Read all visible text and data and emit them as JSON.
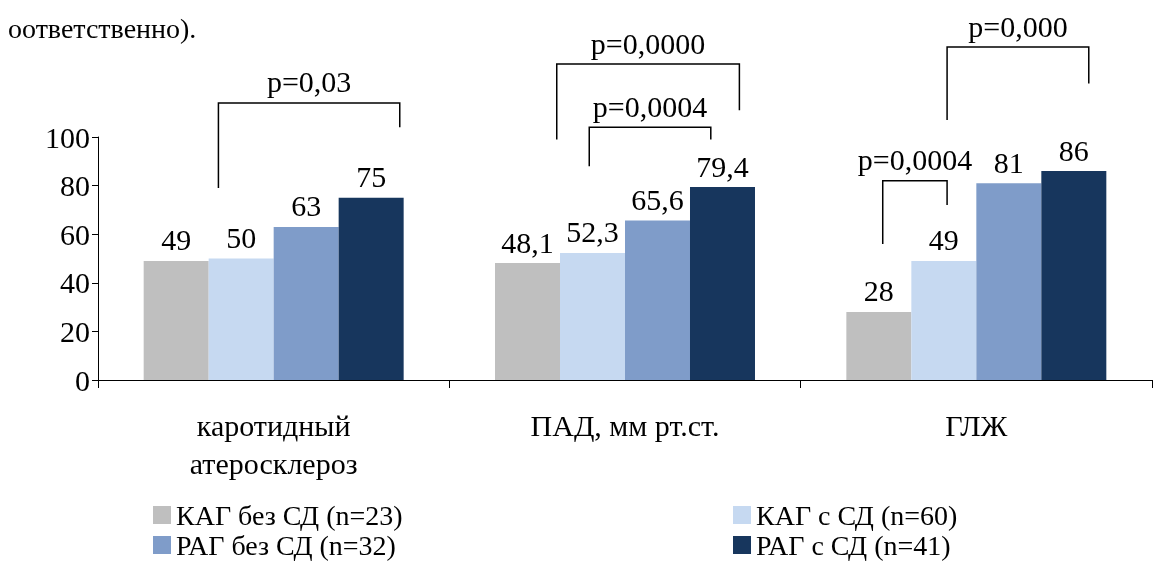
{
  "chart_data": {
    "type": "bar",
    "categories": [
      "каротидный атеросклероз",
      "ПАД, мм рт.ст.",
      "ГЛЖ"
    ],
    "series": [
      {
        "name": "КАГ без СД (n=23)",
        "color": "#bfbfbf",
        "values": [
          49,
          48.1,
          28
        ],
        "value_labels": [
          "49",
          "48,1",
          "28"
        ]
      },
      {
        "name": "КАГ с СД (n=60)",
        "color": "#c6d9f1",
        "values": [
          50,
          52.3,
          49
        ],
        "value_labels": [
          "50",
          "52,3",
          "49"
        ]
      },
      {
        "name": "РАГ без СД (n=32)",
        "color": "#7f9cc9",
        "values": [
          63,
          65.6,
          81
        ],
        "value_labels": [
          "63",
          "65,6",
          "81"
        ]
      },
      {
        "name": "РАГ с СД (n=41)",
        "color": "#17365d",
        "values": [
          75,
          79.4,
          86
        ],
        "value_labels": [
          "75",
          "79,4",
          "86"
        ]
      }
    ],
    "ylim": [
      0,
      100
    ],
    "yticks": [
      0,
      20,
      40,
      60,
      80,
      100
    ],
    "grid": false,
    "legend": "bottom",
    "annotations": [
      "оответственно).",
      "p=0,03",
      "p=0,0000",
      "p=0,0004",
      "p=0,0004",
      "p=0,000"
    ]
  }
}
